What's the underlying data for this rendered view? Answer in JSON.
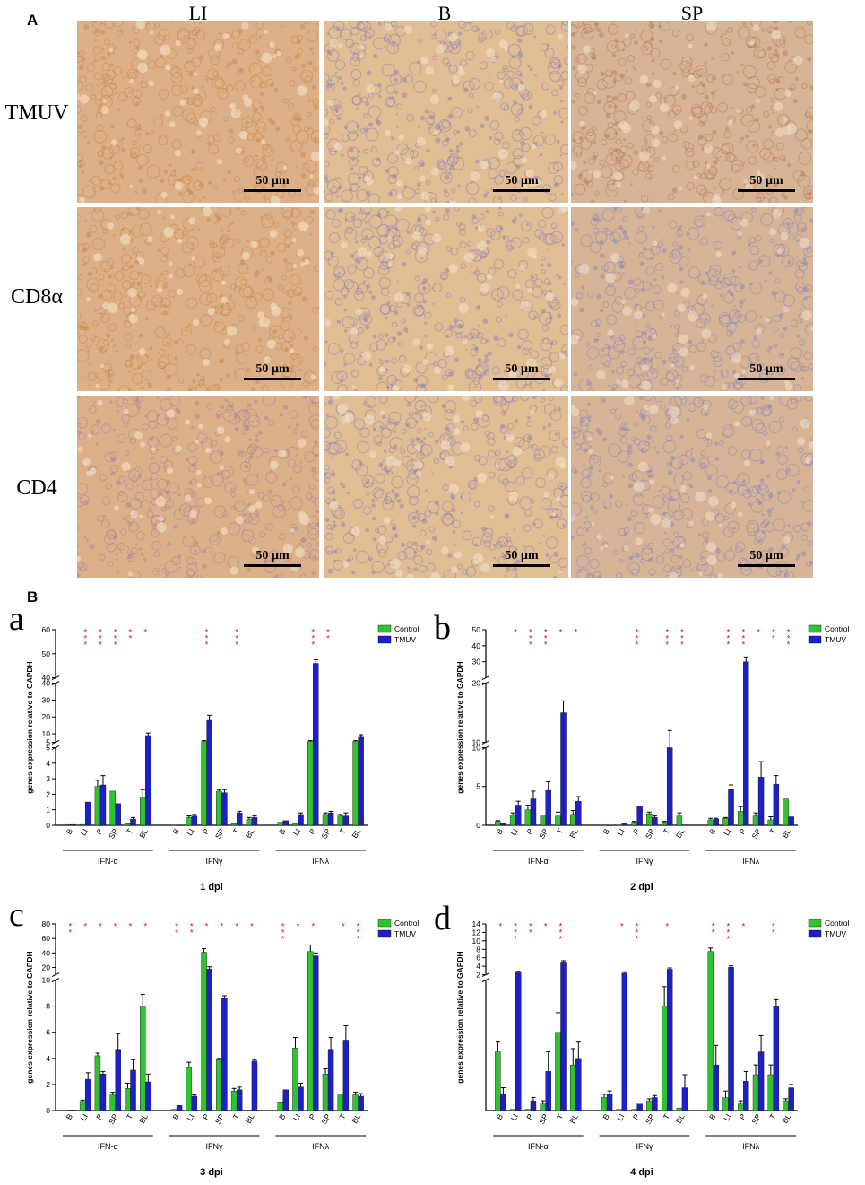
{
  "panel_a": {
    "letter": "A",
    "columns": [
      "LI",
      "B",
      "SP"
    ],
    "rows": [
      "TMUV",
      "CD8α",
      "CD4"
    ],
    "scale_label": "50 µm",
    "palette": {
      "LI": {
        "bg": "#dcb088",
        "cell": "#c98a4a",
        "edge": "#f4e2c6"
      },
      "B": {
        "bg": "#e1bd93",
        "cell": "#8f84b4",
        "edge": "#f2dfc5"
      },
      "SP": {
        "bg": "#d7b496",
        "cell": "#8e88b8",
        "edge": "#efdcc6"
      }
    }
  },
  "panel_b_letter": "B",
  "chart_data": [
    {
      "id": "a",
      "letter": "a",
      "type": "bar",
      "title": "1 dpi",
      "ylabel": "genes expression relative to GAPDH",
      "legend": [
        "Control",
        "TMUV"
      ],
      "colors": {
        "Control": "#2fc42f",
        "TMUV": "#1f1fc8"
      },
      "groups": [
        "IFN-α",
        "IFNγ",
        "IFNλ"
      ],
      "categories": [
        "B",
        "LI",
        "P",
        "SP",
        "T",
        "BL"
      ],
      "segments": [
        {
          "range": [
            0,
            5
          ],
          "ticks": [
            0,
            1,
            2,
            3,
            4,
            5
          ]
        },
        {
          "range": [
            5,
            40
          ],
          "ticks": [
            5,
            10,
            20,
            30,
            40
          ]
        },
        {
          "range": [
            40,
            60
          ],
          "ticks": [
            40,
            50,
            60
          ]
        }
      ],
      "series": [
        {
          "name": "Control",
          "values": [
            [
              0.05,
              0.05,
              2.5,
              2.2,
              0.1,
              1.8
            ],
            [
              0.02,
              0.5,
              5.5,
              2.2,
              0.1,
              0.4
            ],
            [
              0.2,
              0.1,
              5.5,
              0.7,
              0.6,
              5.5
            ]
          ],
          "errors": [
            [
              0,
              0,
              0.4,
              0,
              0,
              0.5
            ],
            [
              0,
              0.1,
              0.5,
              0.1,
              0,
              0.1
            ],
            [
              0,
              0,
              0.5,
              0.1,
              0.1,
              0.5
            ]
          ]
        },
        {
          "name": "TMUV",
          "values": [
            [
              0.05,
              1.5,
              2.6,
              1.4,
              0.4,
              9
            ],
            [
              0.02,
              0.6,
              18,
              2.1,
              0.8,
              0.5
            ],
            [
              0.3,
              0.7,
              46,
              0.8,
              0.6,
              8
            ]
          ],
          "errors": [
            [
              0,
              0,
              0.6,
              0,
              0.1,
              1.5
            ],
            [
              0,
              0.1,
              3,
              0.2,
              0.1,
              0.1
            ],
            [
              0,
              0.1,
              1.5,
              0.1,
              0.2,
              1.5
            ]
          ]
        }
      ],
      "sig": [
        [
          "",
          "***",
          "***",
          "***",
          "**",
          "*"
        ],
        [
          "",
          "",
          "***",
          "",
          "***",
          ""
        ],
        [
          "",
          "",
          "***",
          "**",
          "",
          ""
        ]
      ]
    },
    {
      "id": "b",
      "letter": "b",
      "type": "bar",
      "title": "2 dpi",
      "ylabel": "genes expression relative to GAPDH",
      "legend": [
        "Control",
        "TMUV"
      ],
      "colors": {
        "Control": "#2fc42f",
        "TMUV": "#1f1fc8"
      },
      "groups": [
        "IFN-α",
        "IFNγ",
        "IFNλ"
      ],
      "categories": [
        "B",
        "LI",
        "P",
        "SP",
        "T",
        "BL"
      ],
      "segments": [
        {
          "range": [
            0,
            10
          ],
          "ticks": [
            0,
            5,
            10
          ]
        },
        {
          "range": [
            10,
            20
          ],
          "ticks": [
            10,
            20
          ]
        },
        {
          "range": [
            20,
            50
          ],
          "ticks": [
            30,
            40,
            50
          ]
        }
      ],
      "series": [
        {
          "name": "Control",
          "values": [
            [
              0.5,
              1.3,
              2,
              1.2,
              1.2,
              1.4
            ],
            [
              0.05,
              0.05,
              0.4,
              1.5,
              0.4,
              1.2
            ],
            [
              0.7,
              0.9,
              1.8,
              1.2,
              0.7,
              3.4
            ]
          ],
          "errors": [
            [
              0.1,
              0.3,
              0.6,
              0,
              0.5,
              0.5
            ],
            [
              0,
              0,
              0.1,
              0.2,
              0.1,
              0.4
            ],
            [
              0.2,
              0.1,
              0.6,
              0.4,
              0.4,
              0
            ]
          ]
        },
        {
          "name": "TMUV",
          "values": [
            [
              0.2,
              2.6,
              3.4,
              4.5,
              15,
              3.1
            ],
            [
              0.03,
              0.3,
              2.5,
              1.0,
              10,
              0.05
            ],
            [
              0.8,
              4.6,
              30,
              6.2,
              5.3,
              1.1
            ]
          ],
          "errors": [
            [
              0,
              0.5,
              1,
              1.1,
              2,
              0.6
            ],
            [
              0,
              0,
              0,
              0.2,
              2,
              0
            ],
            [
              0.1,
              0.6,
              3,
              2,
              1.1,
              0
            ]
          ]
        }
      ],
      "sig": [
        [
          "",
          "*",
          "***",
          "***",
          "*",
          "*"
        ],
        [
          "",
          "",
          "***",
          "",
          "***",
          "***"
        ],
        [
          "",
          "***",
          "***",
          "*",
          "**",
          "***"
        ]
      ]
    },
    {
      "id": "c",
      "letter": "c",
      "type": "bar",
      "title": "3 dpi",
      "ylabel": "genes expression relative to GAPDH",
      "legend": [
        "Control",
        "TMUV"
      ],
      "colors": {
        "Control": "#2fc42f",
        "TMUV": "#1f1fc8"
      },
      "groups": [
        "IFN-α",
        "IFNγ",
        "IFNλ"
      ],
      "categories": [
        "B",
        "LI",
        "P",
        "SP",
        "T",
        "BL"
      ],
      "segments": [
        {
          "range": [
            0,
            10
          ],
          "ticks": [
            0,
            2,
            4,
            6,
            8,
            10
          ]
        },
        {
          "range": [
            10,
            80
          ],
          "ticks": [
            20,
            40,
            60,
            80
          ]
        }
      ],
      "series": [
        {
          "name": "Control",
          "values": [
            [
              0.05,
              0.7,
              4.2,
              1.2,
              1.7,
              8
            ],
            [
              0.1,
              3.3,
              41,
              3.9,
              1.5,
              0.05
            ],
            [
              0.6,
              4.8,
              42,
              2.8,
              1.2,
              1.2
            ]
          ],
          "errors": [
            [
              0,
              0.1,
              0.2,
              0.2,
              0.4,
              0.9
            ],
            [
              0,
              0.4,
              5,
              0.1,
              0.2,
              0
            ],
            [
              0,
              0.8,
              9,
              0.4,
              0,
              0.2
            ]
          ]
        },
        {
          "name": "TMUV",
          "values": [
            [
              0.05,
              2.4,
              2.8,
              4.7,
              3.1,
              2.2
            ],
            [
              0.4,
              1.1,
              18,
              8.6,
              1.6,
              3.8
            ],
            [
              1.6,
              1.8,
              36,
              4.7,
              5.4,
              1.1
            ]
          ],
          "errors": [
            [
              0,
              0.5,
              0.2,
              1.2,
              0.8,
              0.6
            ],
            [
              0,
              0.1,
              3,
              0.2,
              0.2,
              0.1
            ],
            [
              0,
              0.3,
              4,
              0.9,
              1.1,
              0.2
            ]
          ]
        }
      ],
      "sig": [
        [
          "**",
          "*",
          "*",
          "*",
          "*",
          "*"
        ],
        [
          "**",
          "**",
          "*",
          "*",
          "*",
          "*"
        ],
        [
          "***",
          "*",
          "*",
          "",
          "*",
          "***"
        ]
      ]
    },
    {
      "id": "d",
      "letter": "d",
      "type": "bar",
      "title": "4 dpi",
      "ylabel": "genes expression relative to GAPDH",
      "legend": [
        "Control",
        "TMUV"
      ],
      "colors": {
        "Control": "#2fc42f",
        "TMUV": "#1f1fc8"
      },
      "groups": [
        "IFN-α",
        "IFNγ",
        "IFNλ"
      ],
      "categories": [
        "B",
        "LI",
        "P",
        "SP",
        "T",
        "BL"
      ],
      "segments": [
        {
          "range": [
            0,
            2
          ],
          "ticks": []
        },
        {
          "range": [
            2,
            14
          ],
          "ticks": [
            2,
            4,
            6,
            8,
            10,
            12,
            14
          ]
        }
      ],
      "series": [
        {
          "name": "Control",
          "values": [
            [
              0.9,
              0.02,
              0.02,
              0.1,
              1.2,
              0.7
            ],
            [
              0.2,
              0.02,
              0.02,
              0.15,
              1.6,
              0.04
            ],
            [
              7.5,
              0.2,
              0.1,
              0.55,
              0.55,
              0.15
            ]
          ],
          "errors": [
            [
              0.15,
              0,
              0,
              0.05,
              0.3,
              0.25
            ],
            [
              0.05,
              0,
              0,
              0.03,
              0.3,
              0
            ],
            [
              0.8,
              0.1,
              0.05,
              0.15,
              0.15,
              0.03
            ]
          ]
        },
        {
          "name": "TMUV",
          "values": [
            [
              0.25,
              2.7,
              0.15,
              0.6,
              5,
              0.8
            ],
            [
              0.25,
              2.4,
              0.1,
              0.2,
              3.3,
              0.35
            ],
            [
              0.7,
              3.8,
              0.45,
              0.9,
              1.6,
              0.35
            ]
          ],
          "errors": [
            [
              0.1,
              0.1,
              0.05,
              0.3,
              0.3,
              0.25
            ],
            [
              0.05,
              0.3,
              0,
              0.03,
              0.3,
              0.2
            ],
            [
              0.3,
              0.3,
              0.15,
              0.25,
              0.1,
              0.05
            ]
          ]
        }
      ],
      "sig": [
        [
          "*",
          "***",
          "**",
          "*",
          "***",
          ""
        ],
        [
          "",
          "*",
          "***",
          "",
          "*",
          ""
        ],
        [
          "**",
          "***",
          "*",
          "",
          "**",
          ""
        ]
      ]
    }
  ]
}
